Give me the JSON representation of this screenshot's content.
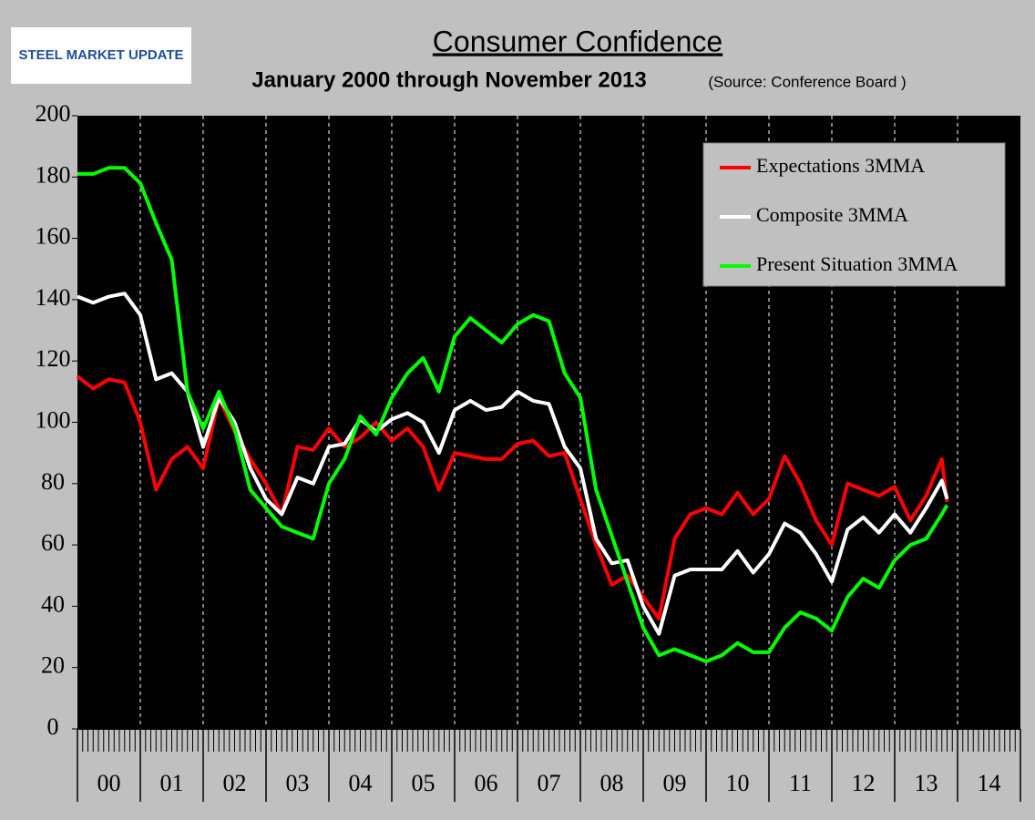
{
  "logo": "STEEL MARKET UPDATE",
  "chart_data": {
    "type": "line",
    "title": "Consumer Confidence",
    "subtitle": "January 2000 through November 2013",
    "source": "(Source: Conference Board )",
    "x_labels": [
      "00",
      "01",
      "02",
      "03",
      "04",
      "05",
      "06",
      "07",
      "08",
      "09",
      "10",
      "11",
      "12",
      "13",
      "14"
    ],
    "x": [
      2000,
      2000.25,
      2000.5,
      2000.75,
      2001,
      2001.25,
      2001.5,
      2001.75,
      2002,
      2002.25,
      2002.5,
      2002.75,
      2003,
      2003.25,
      2003.5,
      2003.75,
      2004,
      2004.25,
      2004.5,
      2004.75,
      2005,
      2005.25,
      2005.5,
      2005.75,
      2006,
      2006.25,
      2006.5,
      2006.75,
      2007,
      2007.25,
      2007.5,
      2007.75,
      2008,
      2008.25,
      2008.5,
      2008.75,
      2009,
      2009.25,
      2009.5,
      2009.75,
      2010,
      2010.25,
      2010.5,
      2010.75,
      2011,
      2011.25,
      2011.5,
      2011.75,
      2012,
      2012.25,
      2012.5,
      2012.75,
      2013,
      2013.25,
      2013.5,
      2013.75,
      2013.833
    ],
    "xlim": [
      2000,
      2015
    ],
    "xticks": [
      2000,
      2001,
      2002,
      2003,
      2004,
      2005,
      2006,
      2007,
      2008,
      2009,
      2010,
      2011,
      2012,
      2013,
      2014,
      2015
    ],
    "ylim": [
      0,
      200
    ],
    "yticks": [
      0,
      20,
      40,
      60,
      80,
      100,
      120,
      140,
      160,
      180,
      200
    ],
    "legend": "upper right",
    "series": [
      {
        "name": "Expectations 3MMA",
        "color": "#ff0000",
        "values": [
          115,
          111,
          114,
          113,
          100,
          78,
          88,
          92,
          85,
          108,
          97,
          88,
          80,
          70,
          92,
          91,
          98,
          92,
          95,
          100,
          94,
          98,
          92,
          78,
          90,
          89,
          88,
          88,
          93,
          94,
          89,
          90,
          75,
          60,
          47,
          50,
          43,
          36,
          62,
          70,
          72,
          70,
          77,
          70,
          75,
          89,
          80,
          68,
          60,
          80,
          78,
          76,
          79,
          68,
          76,
          88,
          74
        ]
      },
      {
        "name": "Composite 3MMA",
        "color": "#ffffff",
        "values": [
          141,
          139,
          141,
          142,
          135,
          114,
          116,
          110,
          92,
          108,
          100,
          85,
          75,
          70,
          82,
          80,
          92,
          93,
          101,
          97,
          101,
          103,
          100,
          90,
          104,
          107,
          104,
          105,
          110,
          107,
          106,
          92,
          85,
          62,
          54,
          55,
          40,
          31,
          50,
          52,
          52,
          52,
          58,
          51,
          57,
          67,
          64,
          57,
          48,
          65,
          69,
          64,
          70,
          64,
          72,
          81,
          75
        ]
      },
      {
        "name": "Present Situation 3MMA",
        "color": "#00ff00",
        "values": [
          181,
          181,
          183,
          183,
          178,
          165,
          153,
          110,
          98,
          110,
          98,
          78,
          72,
          66,
          64,
          62,
          80,
          88,
          102,
          96,
          108,
          116,
          121,
          110,
          128,
          134,
          130,
          126,
          132,
          135,
          133,
          116,
          108,
          78,
          63,
          48,
          33,
          24,
          26,
          24,
          22,
          24,
          28,
          25,
          25,
          33,
          38,
          36,
          32,
          43,
          49,
          46,
          55,
          60,
          62,
          70,
          73
        ]
      }
    ]
  }
}
